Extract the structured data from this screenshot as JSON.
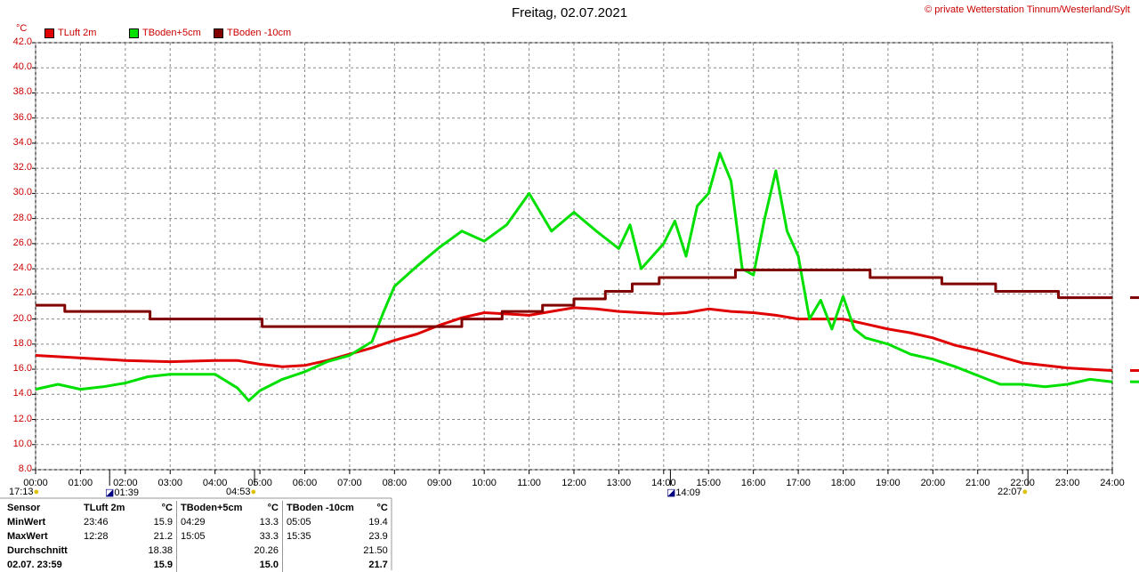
{
  "title": "Freitag, 02.07.2021",
  "copyright": "© private Wetterstation Tinnum/Westerland/Sylt",
  "unit": "°C",
  "legend": [
    {
      "label": "TLuft 2m",
      "color": "#e00000"
    },
    {
      "label": "TBoden+5cm",
      "color": "#00e000"
    },
    {
      "label": "TBoden -10cm",
      "color": "#800000"
    }
  ],
  "events": {
    "sunset_prev": "17:13",
    "moon1": "01:39",
    "sunrise": "04:53",
    "moon2": "14:09",
    "sunset": "22:07"
  },
  "chart_data": {
    "type": "line",
    "title": "Freitag, 02.07.2021",
    "ylabel": "°C",
    "ylim": [
      8,
      42
    ],
    "yticks": [
      "8.0",
      "10.0",
      "12.0",
      "14.0",
      "16.0",
      "18.0",
      "20.0",
      "22.0",
      "24.0",
      "26.0",
      "28.0",
      "30.0",
      "32.0",
      "34.0",
      "36.0",
      "38.0",
      "40.0",
      "42.0"
    ],
    "xlim": [
      0,
      24
    ],
    "xticks": [
      "00:00",
      "01:00",
      "02:00",
      "03:00",
      "04:00",
      "05:00",
      "06:00",
      "07:00",
      "08:00",
      "09:00",
      "10:00",
      "11:00",
      "12:00",
      "13:00",
      "14:00",
      "15:00",
      "16:00",
      "17:00",
      "18:00",
      "19:00",
      "20:00",
      "21:00",
      "22:00",
      "23:00",
      "24:00"
    ],
    "grid": true,
    "legend_position": "top-left",
    "series": [
      {
        "name": "TLuft 2m",
        "color": "#e00000",
        "x": [
          0,
          1,
          2,
          3,
          4,
          4.5,
          5,
          5.5,
          6,
          6.5,
          7,
          7.5,
          8,
          8.5,
          9,
          9.5,
          10,
          10.5,
          11,
          11.5,
          12,
          12.5,
          13,
          13.5,
          14,
          14.5,
          15,
          15.5,
          16,
          16.5,
          17,
          17.5,
          18,
          18.5,
          19,
          19.5,
          20,
          20.5,
          21,
          21.5,
          22,
          22.5,
          23,
          23.5,
          24
        ],
        "y": [
          17.1,
          16.9,
          16.7,
          16.6,
          16.7,
          16.7,
          16.4,
          16.2,
          16.3,
          16.7,
          17.2,
          17.7,
          18.3,
          18.8,
          19.5,
          20.1,
          20.5,
          20.4,
          20.3,
          20.6,
          20.9,
          20.8,
          20.6,
          20.5,
          20.4,
          20.5,
          20.8,
          20.6,
          20.5,
          20.3,
          20.0,
          20.0,
          20.0,
          19.6,
          19.2,
          18.9,
          18.5,
          17.9,
          17.5,
          17.0,
          16.5,
          16.3,
          16.1,
          16.0,
          15.9
        ]
      },
      {
        "name": "TBoden+5cm",
        "color": "#00e000",
        "x": [
          0,
          0.5,
          1,
          1.5,
          2,
          2.5,
          3,
          3.5,
          4,
          4.5,
          4.75,
          5,
          5.5,
          6,
          6.5,
          7,
          7.5,
          7.75,
          8,
          8.5,
          9,
          9.5,
          10,
          10.5,
          11,
          11.5,
          12,
          12.5,
          13,
          13.25,
          13.5,
          14,
          14.25,
          14.5,
          14.75,
          15,
          15.25,
          15.5,
          15.75,
          16,
          16.25,
          16.5,
          16.75,
          17,
          17.25,
          17.5,
          17.75,
          18,
          18.25,
          18.5,
          19,
          19.5,
          20,
          20.5,
          21,
          21.5,
          22,
          22.5,
          23,
          23.5,
          24
        ],
        "y": [
          14.4,
          14.8,
          14.4,
          14.6,
          14.9,
          15.4,
          15.6,
          15.6,
          15.6,
          14.5,
          13.5,
          14.3,
          15.2,
          15.8,
          16.6,
          17.1,
          18.2,
          20.5,
          22.6,
          24.2,
          25.7,
          27.0,
          26.2,
          27.5,
          30.0,
          27.0,
          28.5,
          27.0,
          25.6,
          27.5,
          24.0,
          26.0,
          27.8,
          25.0,
          29.0,
          30.0,
          33.2,
          31.0,
          24.0,
          23.5,
          28.0,
          31.8,
          27.0,
          25.0,
          20.0,
          21.5,
          19.2,
          21.8,
          19.2,
          18.5,
          18.0,
          17.2,
          16.8,
          16.2,
          15.5,
          14.8,
          14.8,
          14.6,
          14.8,
          15.2,
          15.0
        ]
      },
      {
        "name": "TBoden -10cm",
        "color": "#800000",
        "x": [
          0,
          0.65,
          0.65,
          2.55,
          2.55,
          5.05,
          5.05,
          9.5,
          9.5,
          10.4,
          10.4,
          11.3,
          11.3,
          12.0,
          12.0,
          12.7,
          12.7,
          13.3,
          13.3,
          13.9,
          13.9,
          15.6,
          15.6,
          18.6,
          18.6,
          20.2,
          20.2,
          21.4,
          21.4,
          22.8,
          22.8,
          24
        ],
        "y": [
          21.1,
          21.1,
          20.6,
          20.6,
          20.0,
          20.0,
          19.4,
          19.4,
          20.0,
          20.0,
          20.6,
          20.6,
          21.1,
          21.1,
          21.6,
          21.6,
          22.2,
          22.2,
          22.8,
          22.8,
          23.3,
          23.3,
          23.9,
          23.9,
          23.3,
          23.3,
          22.8,
          22.8,
          22.2,
          22.2,
          21.7,
          21.7
        ]
      }
    ]
  },
  "stats": {
    "headers": [
      "Sensor",
      "TLuft 2m",
      "°C",
      "TBoden+5cm",
      "°C",
      "TBoden -10cm",
      "°C"
    ],
    "rows": [
      [
        "MinWert",
        "23:46",
        "15.9",
        "04:29",
        "13.3",
        "05:05",
        "19.4"
      ],
      [
        "MaxWert",
        "12:28",
        "21.2",
        "15:05",
        "33.3",
        "15:35",
        "23.9"
      ],
      [
        "Durchschnitt",
        "",
        "18.38",
        "",
        "20.26",
        "",
        "21.50"
      ],
      [
        "02.07. 23:59",
        "",
        "15.9",
        "",
        "15.0",
        "",
        "21.7"
      ]
    ]
  }
}
